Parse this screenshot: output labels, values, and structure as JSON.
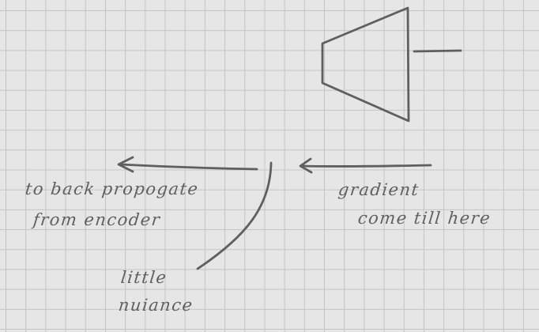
{
  "annotations": {
    "left_line1": "to back propogate",
    "left_line2": "from encoder",
    "right_line1": "gradient",
    "right_line2": "come till here",
    "bottom_line1": "little",
    "bottom_line2": "nuiance"
  },
  "colors": {
    "background": "#e6e6e6",
    "grid": "#c4c4c4",
    "ink": "#5f5f5f"
  }
}
